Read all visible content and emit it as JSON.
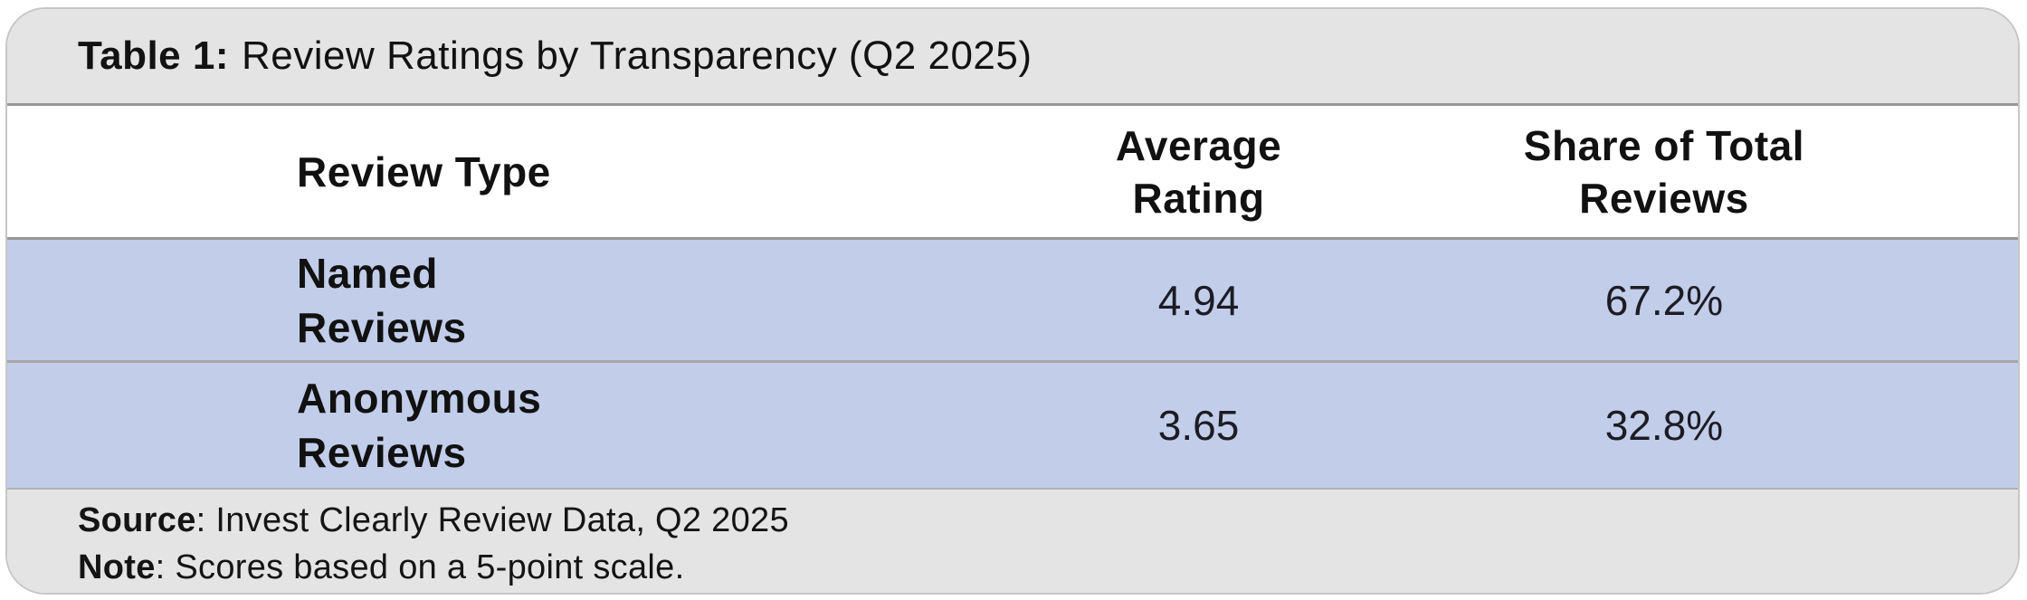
{
  "table": {
    "caption": {
      "label": "Table 1:",
      "text": "Review Ratings by Transparency (Q2 2025)"
    },
    "columns": {
      "review_type": "Review Type",
      "average_rating": "Average\nRating",
      "share_of_total": "Share of Total\nReviews"
    },
    "rows": [
      {
        "type": "Named\nReviews",
        "avg_rating": "4.94",
        "share": "67.2%"
      },
      {
        "type": "Anonymous\nReviews",
        "avg_rating": "3.65",
        "share": "32.8%"
      }
    ],
    "footer": {
      "source_label": "Source",
      "source_text": ": Invest Clearly Review Data, Q2 2025",
      "note_label": "Note",
      "note_text": ": Scores based on a 5-point scale."
    }
  },
  "colors": {
    "band_gray": "#e4e4e4",
    "row_blue": "#c2cdea",
    "divider_dark": "#979797",
    "divider_light": "#a6a6a6",
    "text": "#111111"
  },
  "chart_data": {
    "type": "table",
    "title": "Table 1: Review Ratings by Transparency (Q2 2025)",
    "columns": [
      "Review Type",
      "Average Rating",
      "Share of Total Reviews"
    ],
    "rows": [
      [
        "Named Reviews",
        4.94,
        "67.2%"
      ],
      [
        "Anonymous Reviews",
        3.65,
        "32.8%"
      ]
    ],
    "source": "Invest Clearly Review Data, Q2 2025",
    "note": "Scores based on a 5-point scale.",
    "layout": "title bar top, header row, two highlighted data rows, source/note footer"
  }
}
